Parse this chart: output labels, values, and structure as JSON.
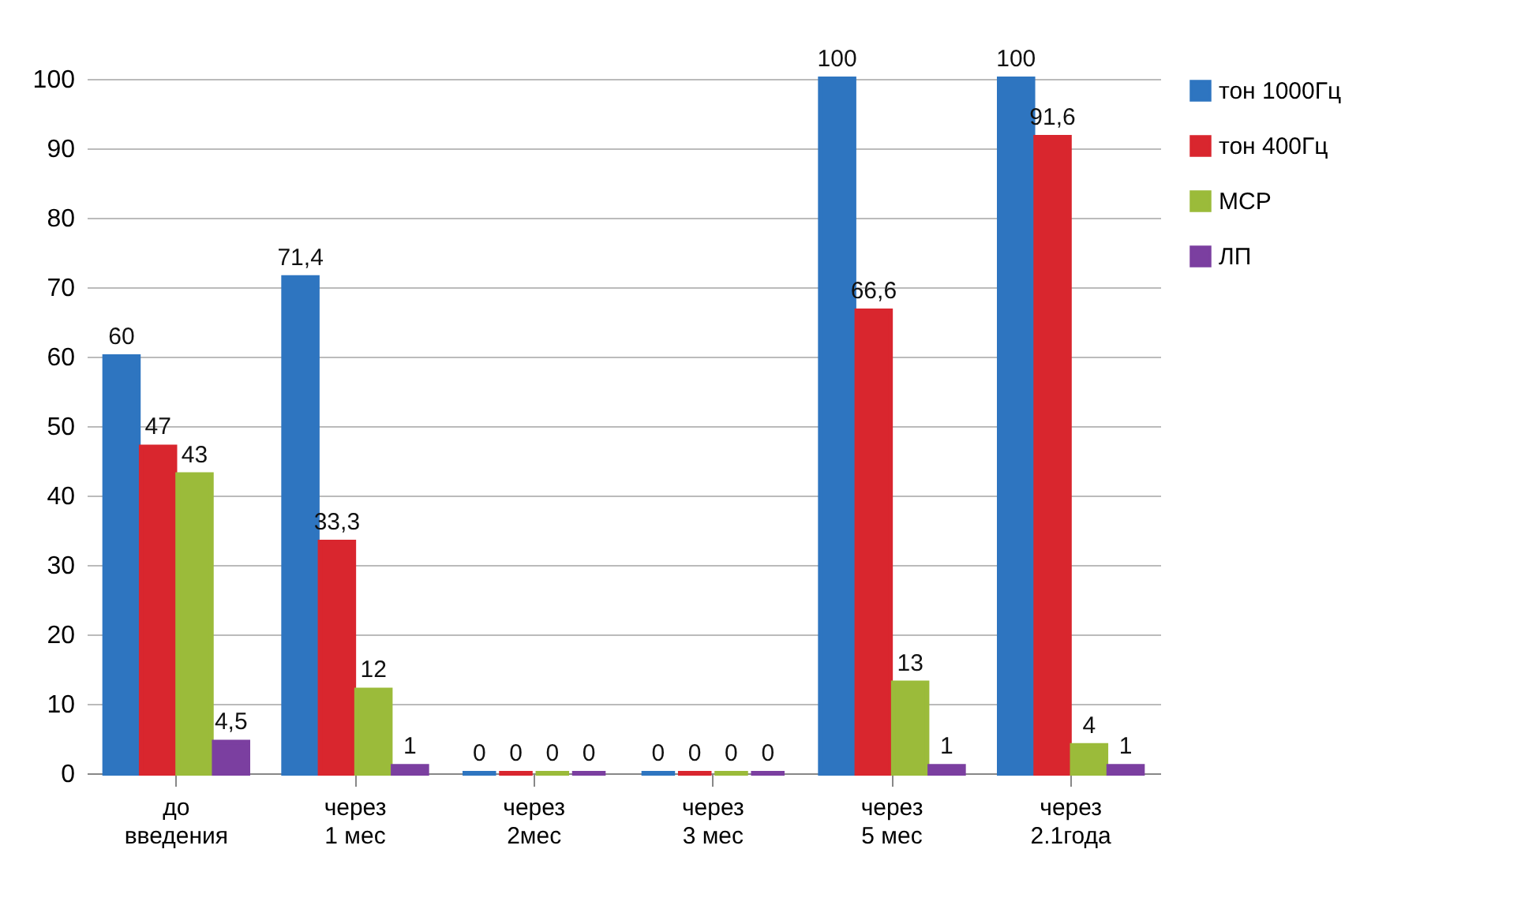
{
  "chart_data": {
    "type": "bar",
    "categories": [
      "до введения",
      "через 1 мес",
      "через 2мес",
      "через 3 мес",
      "через 5 мес",
      "через 2.1года"
    ],
    "series": [
      {
        "name": "тон 1000Гц",
        "color": "#2e75c0",
        "values": [
          60,
          71.4,
          0,
          0,
          100,
          100
        ],
        "value_labels": [
          "60",
          "71,4",
          "0",
          "0",
          "100",
          "100"
        ]
      },
      {
        "name": "тон 400Гц",
        "color": "#d9262e",
        "values": [
          47,
          33.3,
          0,
          0,
          66.6,
          91.6
        ],
        "value_labels": [
          "47",
          "33,3",
          "0",
          "0",
          "66,6",
          "91,6"
        ]
      },
      {
        "name": "МСР",
        "color": "#9bbb3a",
        "values": [
          43,
          12,
          0,
          0,
          13,
          4
        ],
        "value_labels": [
          "43",
          "12",
          "0",
          "0",
          "13",
          "4"
        ]
      },
      {
        "name": "ЛП",
        "color": "#7b3fa0",
        "values": [
          4.5,
          1,
          0,
          0,
          1,
          1
        ],
        "value_labels": [
          "4,5",
          "1",
          "0",
          "0",
          "1",
          "1"
        ]
      }
    ],
    "ylim": [
      0,
      100
    ],
    "yticks": [
      0,
      10,
      20,
      30,
      40,
      50,
      60,
      70,
      80,
      90,
      100
    ],
    "grid": "y",
    "legend": "right"
  }
}
